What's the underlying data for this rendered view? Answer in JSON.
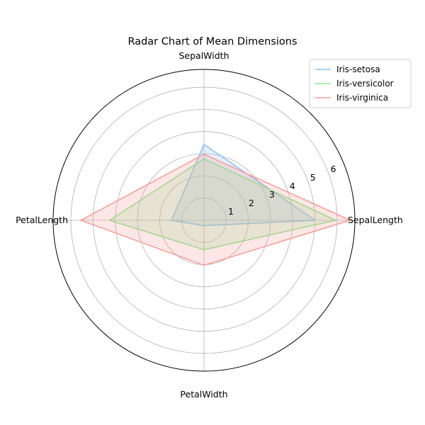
{
  "chart_data": {
    "type": "radar",
    "title": "Radar Chart of Mean Dimensions",
    "axes": [
      "SepalLength",
      "SepalWidth",
      "PetalLength",
      "PetalWidth"
    ],
    "r_ticks": [
      1,
      2,
      3,
      4,
      5,
      6
    ],
    "r_max": 6.8,
    "grid": true,
    "legend_position": "top-right",
    "series": [
      {
        "name": "Iris-setosa",
        "values": [
          5.006,
          3.418,
          1.464,
          0.244
        ],
        "color": "#8ec1f5"
      },
      {
        "name": "Iris-versicolor",
        "values": [
          5.936,
          2.77,
          4.26,
          1.326
        ],
        "color": "#8ee78e"
      },
      {
        "name": "Iris-virginica",
        "values": [
          6.588,
          2.974,
          5.552,
          2.026
        ],
        "color": "#f5a09b"
      }
    ]
  }
}
